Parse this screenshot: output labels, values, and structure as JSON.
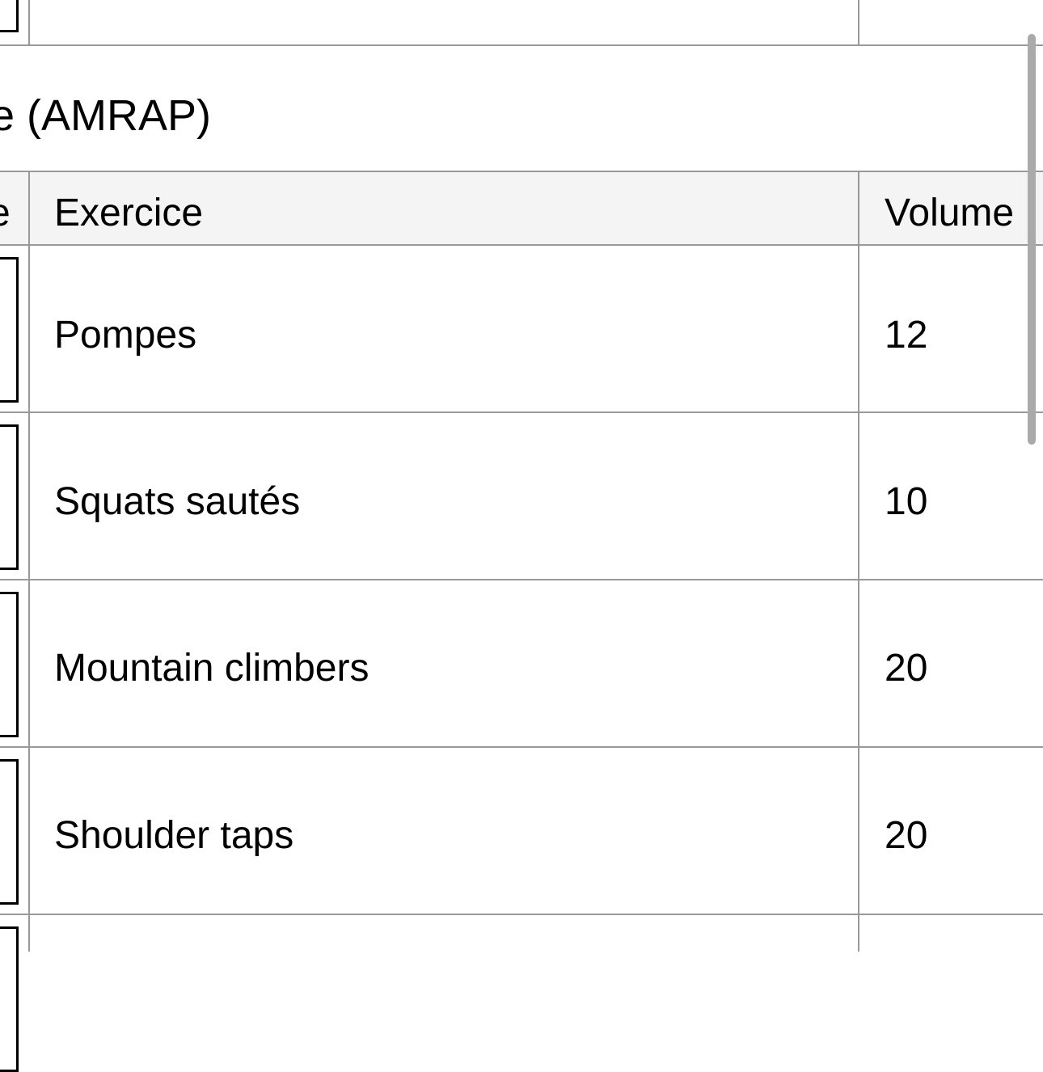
{
  "section_title": "e (AMRAP)",
  "table": {
    "headers": [
      "e",
      "Exercice",
      "Volume"
    ],
    "rows": [
      {
        "exercise": "Pompes",
        "volume": "12"
      },
      {
        "exercise": "Squats sautés",
        "volume": "10"
      },
      {
        "exercise": "Mountain climbers",
        "volume": "20"
      },
      {
        "exercise": "Shoulder taps",
        "volume": "20"
      }
    ]
  }
}
